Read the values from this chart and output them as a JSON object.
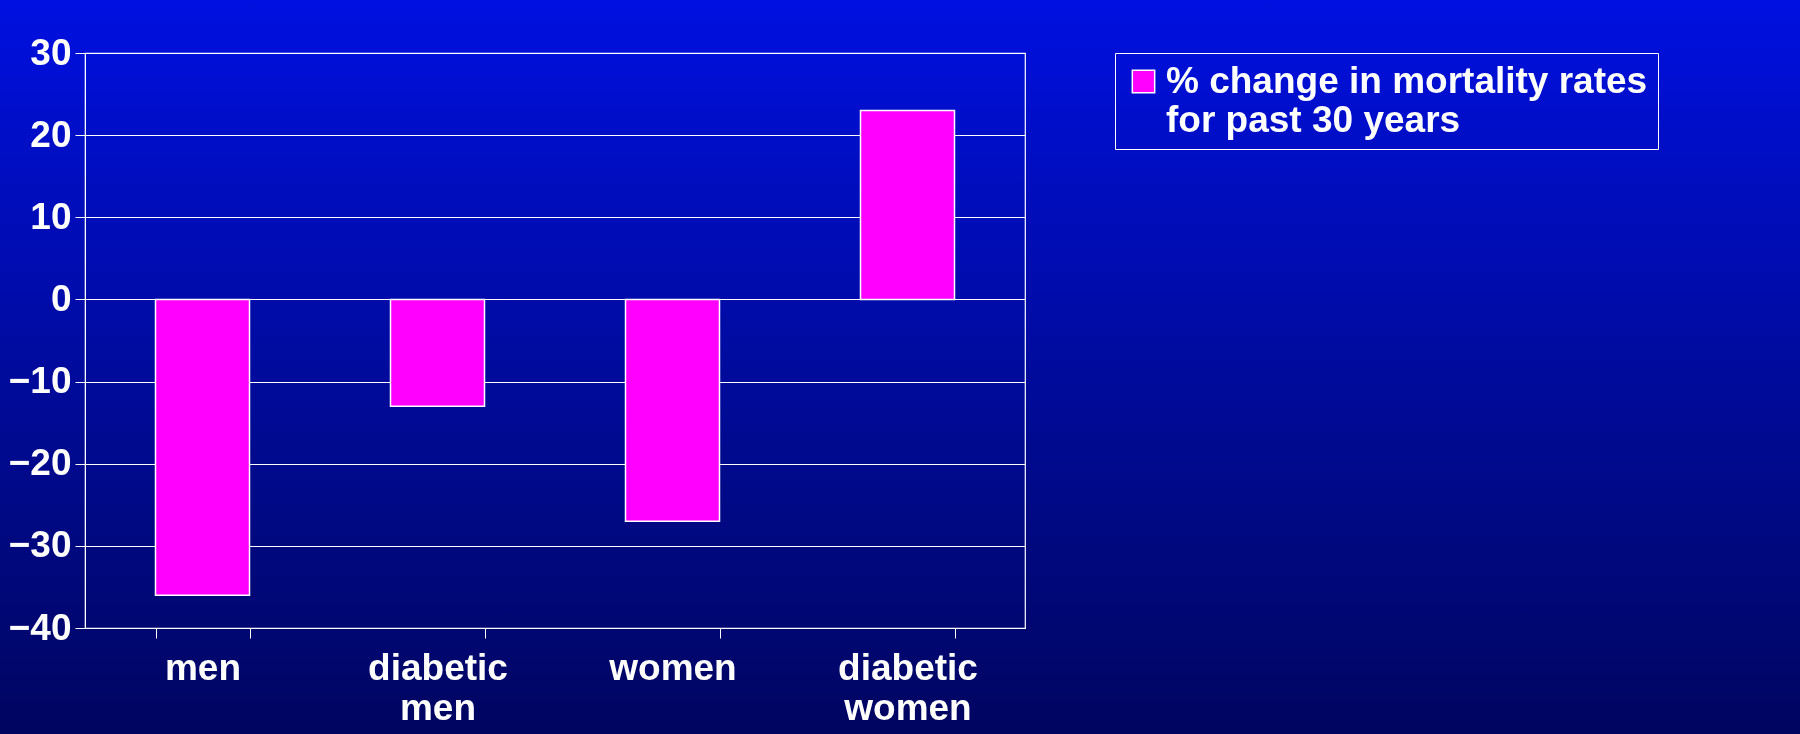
{
  "chart_data": {
    "type": "bar",
    "categories": [
      "men",
      "diabetic men",
      "women",
      "diabetic women"
    ],
    "series": [
      {
        "name": "% change in mortality rates for past 30 years",
        "color": "#ff00ff",
        "values": [
          -36,
          -13,
          -27,
          23
        ]
      }
    ],
    "ylim": [
      -40,
      30
    ],
    "yticks": [
      -40,
      -30,
      -20,
      -10,
      0,
      10,
      20,
      30
    ],
    "grid": "y",
    "legend": "right"
  }
}
